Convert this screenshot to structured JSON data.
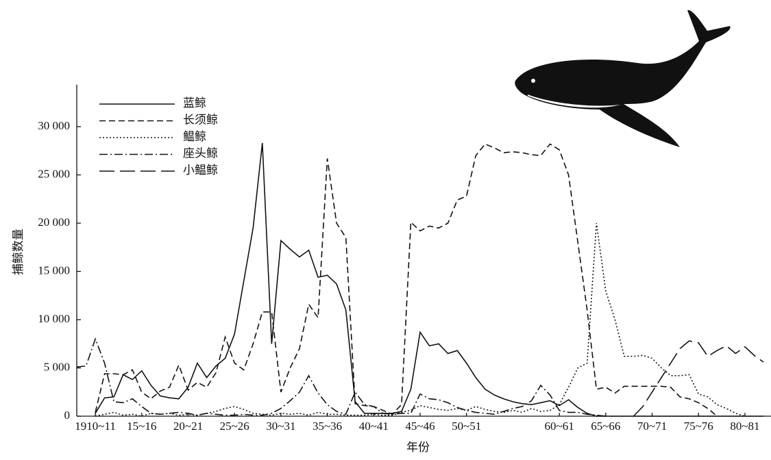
{
  "chart_data": {
    "type": "line",
    "y_label": "捕鲸数量",
    "x_label": "年份",
    "categories": [
      null,
      null,
      "1910~11",
      null,
      null,
      null,
      null,
      "15~16",
      null,
      null,
      null,
      null,
      "20~21",
      null,
      null,
      null,
      null,
      "25~26",
      null,
      null,
      null,
      null,
      "30~31",
      null,
      null,
      null,
      null,
      "35~36",
      null,
      null,
      null,
      null,
      "40~41",
      null,
      null,
      null,
      null,
      "45~46",
      null,
      null,
      null,
      null,
      "50~51",
      null,
      null,
      null,
      null,
      null,
      null,
      null,
      null,
      null,
      "60~61",
      null,
      null,
      null,
      null,
      "65~66",
      null,
      null,
      null,
      null,
      "70~71",
      null,
      null,
      null,
      null,
      "75~76",
      null,
      null,
      null,
      null,
      "80~81",
      null,
      null
    ],
    "series": [
      {
        "name": "蓝鲸",
        "color": "#111111",
        "line_style": "solid",
        "values": [
          null,
          null,
          300,
          1900,
          2000,
          4300,
          3800,
          4700,
          3200,
          2100,
          1900,
          1800,
          3000,
          5500,
          4000,
          5200,
          6000,
          8500,
          14000,
          19500,
          28300,
          7500,
          18200,
          17300,
          16500,
          17200,
          14400,
          14600,
          13700,
          11000,
          1500,
          300,
          300,
          300,
          300,
          500,
          2800,
          8700,
          7300,
          7500,
          6500,
          6800,
          5500,
          4000,
          2800,
          2200,
          1800,
          1500,
          1300,
          1200,
          1400,
          1600,
          1100,
          1700,
          900,
          300,
          0,
          0,
          0,
          0,
          0,
          0,
          0,
          0,
          0,
          0,
          0,
          0,
          0,
          0,
          0,
          0,
          0,
          0,
          0
        ]
      },
      {
        "name": "长须鲸",
        "color": "#111111",
        "line_style": "dashed",
        "values": [
          null,
          null,
          400,
          4400,
          4400,
          4300,
          4800,
          2500,
          1800,
          2600,
          3000,
          5300,
          2700,
          3500,
          3000,
          4500,
          8200,
          5500,
          4800,
          7500,
          10800,
          10800,
          2500,
          5000,
          7000,
          11600,
          10200,
          26700,
          20000,
          18500,
          1300,
          1100,
          1000,
          600,
          200,
          1200,
          20100,
          19200,
          19700,
          19500,
          20000,
          22400,
          22800,
          27000,
          28200,
          27800,
          27300,
          27400,
          27300,
          27100,
          27000,
          28200,
          27600,
          25000,
          18000,
          11000,
          2800,
          3000,
          2400,
          3100,
          3100,
          3100,
          3100,
          3100,
          3000,
          2000,
          1800,
          1400,
          800,
          0,
          null,
          null,
          null,
          null,
          null
        ]
      },
      {
        "name": "鳁鲸",
        "color": "#111111",
        "line_style": "dotted",
        "values": [
          null,
          null,
          0,
          200,
          400,
          100,
          200,
          0,
          300,
          200,
          300,
          100,
          200,
          100,
          300,
          500,
          800,
          1000,
          700,
          300,
          200,
          100,
          300,
          200,
          300,
          100,
          400,
          200,
          200,
          100,
          100,
          100,
          200,
          100,
          100,
          400,
          600,
          1100,
          900,
          700,
          600,
          800,
          600,
          1000,
          700,
          500,
          400,
          600,
          400,
          800,
          500,
          600,
          1200,
          3000,
          5000,
          5500,
          20000,
          13000,
          10000,
          6200,
          6200,
          6300,
          6000,
          5000,
          4200,
          4200,
          4300,
          2300,
          2000,
          1200,
          800,
          300,
          0,
          null,
          null
        ]
      },
      {
        "name": "座头鲸",
        "color": "#111111",
        "line_style": "dashdot",
        "values": [
          5100,
          5200,
          8000,
          5500,
          1500,
          1400,
          1800,
          1000,
          300,
          200,
          300,
          400,
          300,
          100,
          300,
          200,
          100,
          100,
          200,
          100,
          100,
          300,
          800,
          1600,
          2500,
          4200,
          2400,
          1200,
          500,
          200,
          2500,
          1200,
          1000,
          300,
          200,
          300,
          300,
          2300,
          1800,
          1700,
          1400,
          900,
          600,
          400,
          300,
          200,
          500,
          800,
          1000,
          1600,
          3200,
          2200,
          600,
          400,
          400,
          200,
          100,
          0,
          null,
          null,
          null,
          null,
          null,
          null,
          null,
          null,
          null,
          null,
          null,
          null,
          null,
          null,
          null,
          null,
          null
        ]
      },
      {
        "name": "小鳁鲸",
        "color": "#111111",
        "line_style": "longdash",
        "values": [
          null,
          null,
          null,
          null,
          null,
          null,
          null,
          null,
          null,
          null,
          null,
          null,
          null,
          null,
          null,
          null,
          null,
          null,
          null,
          null,
          null,
          null,
          null,
          null,
          null,
          null,
          null,
          null,
          null,
          null,
          null,
          null,
          null,
          null,
          null,
          null,
          null,
          null,
          null,
          null,
          null,
          null,
          null,
          null,
          null,
          null,
          null,
          null,
          null,
          null,
          null,
          null,
          null,
          null,
          null,
          null,
          null,
          null,
          null,
          null,
          0,
          1000,
          2500,
          4000,
          5500,
          7000,
          7800,
          7600,
          6200,
          6800,
          7300,
          6500,
          7200,
          6300,
          5600
        ]
      }
    ],
    "ylim": [
      0,
      34000
    ],
    "yticks": [
      0,
      {
        "value": 5000,
        "label": "5 000"
      },
      {
        "value": 10000,
        "label": "10 000"
      },
      {
        "value": 15000,
        "label": "15 000"
      },
      {
        "value": 20000,
        "label": "20 000"
      },
      {
        "value": 25000,
        "label": "25 000"
      },
      {
        "value": 30000,
        "label": "30 000"
      }
    ],
    "grid": false,
    "legend": "upper-left"
  }
}
